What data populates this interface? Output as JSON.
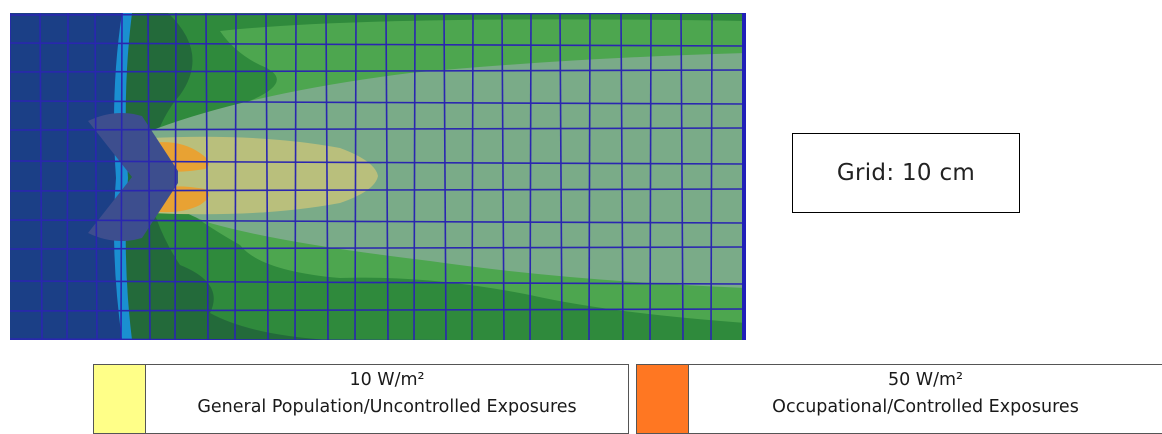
{
  "map": {
    "colors": {
      "background": "#1b3f86",
      "cyan_band": "#1a8fd1",
      "dark_green": "#236a3a",
      "mid_green": "#2f8a3c",
      "light_green": "#4da64f",
      "pale_green": "#7aab88",
      "yellow_zone": "#b9bf7c",
      "orange_zone": "#e8a233",
      "antenna": "#3d4e8e",
      "grid_line": "#2a26b0",
      "frame_right": "#2020b8"
    }
  },
  "grid_note": {
    "text": "Grid: 10 cm"
  },
  "legend": [
    {
      "color": "#ffff88",
      "value": "10 W/m²",
      "label": "General Population/Uncontrolled Exposures"
    },
    {
      "color": "#ff7722",
      "value": "50 W/m²",
      "label": "Occupational/Controlled Exposures"
    }
  ]
}
